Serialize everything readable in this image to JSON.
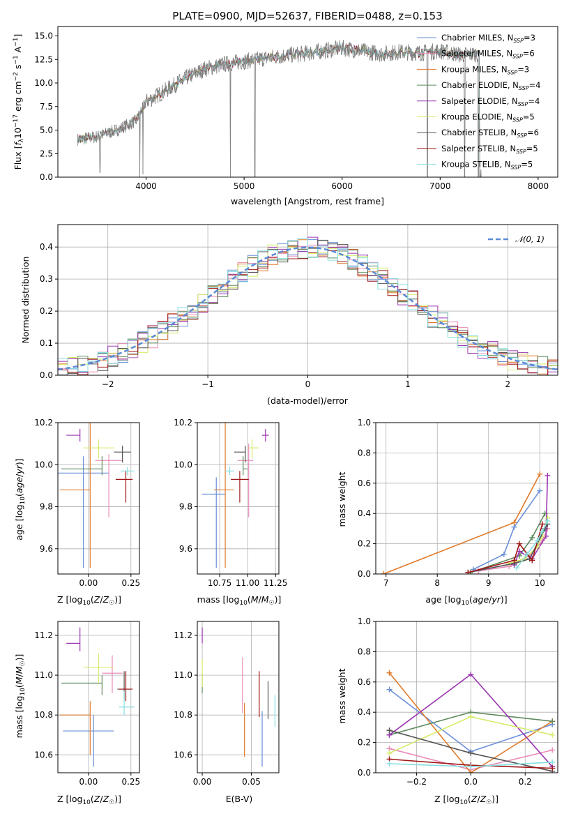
{
  "chart_data": [
    {
      "type": "line",
      "title": "PLATE=0900, MJD=52637, FIBERID=0488, z=0.153",
      "xlabel": "wavelength [Angstrom, rest frame]",
      "ylabel": "Flux [f",
      "xlim": [
        3100,
        8200
      ],
      "ylim": [
        0,
        16
      ],
      "xticks": [
        "4000",
        "5000",
        "6000",
        "7000",
        "8000"
      ],
      "yticks": [
        "0.0",
        "2.5",
        "5.0",
        "7.5",
        "10.0",
        "12.5",
        "15.0"
      ],
      "grid": false,
      "legend_position": "right",
      "series": [
        {
          "name": "Chabrier MILES",
          "nssp": "3",
          "color": "#6a8fd8"
        },
        {
          "name": "Salpeter MILES",
          "nssp": "6",
          "color": "#e98bb8"
        },
        {
          "name": "Kroupa MILES",
          "nssp": "3",
          "color": "#e07a2a"
        },
        {
          "name": "Chabrier ELODIE",
          "nssp": "4",
          "color": "#5e8a5e"
        },
        {
          "name": "Salpeter ELODIE",
          "nssp": "4",
          "color": "#9b35b0"
        },
        {
          "name": "Kroupa ELODIE",
          "nssp": "5",
          "color": "#d4ec68"
        },
        {
          "name": "Chabrier STELIB",
          "nssp": "6",
          "color": "#555555"
        },
        {
          "name": "Salpeter STELIB",
          "nssp": "5",
          "color": "#a01818"
        },
        {
          "name": "Kroupa STELIB",
          "nssp": "5",
          "color": "#86dede"
        }
      ],
      "data_color": "#808080",
      "spectrum_continuum": {
        "x": [
          3300,
          3500,
          3700,
          3900,
          4000,
          4200,
          4400,
          4600,
          4800,
          5000,
          5200,
          5400,
          5600,
          5800,
          6000,
          6200,
          6400,
          6600,
          6800,
          7000,
          7200,
          7400
        ],
        "y": [
          4.0,
          4.3,
          5.0,
          6.0,
          8.0,
          9.2,
          10.5,
          11.5,
          12.0,
          12.3,
          12.6,
          12.9,
          13.1,
          13.4,
          13.7,
          13.4,
          13.1,
          13.3,
          13.2,
          13.4,
          13.0,
          13.1
        ]
      },
      "absorption_dips": [
        {
          "x": 3530,
          "y": 0.5
        },
        {
          "x": 3935,
          "y": 0.0
        },
        {
          "x": 3968,
          "y": 0.3
        },
        {
          "x": 4860,
          "y": 0.0
        },
        {
          "x": 5110,
          "y": 0.0
        },
        {
          "x": 6870,
          "y": 0.0
        },
        {
          "x": 7250,
          "y": 0.0
        },
        {
          "x": 7390,
          "y": 0.0
        }
      ]
    },
    {
      "type": "histogram",
      "xlabel": "(data-model)/error",
      "ylabel": "Normed distribution",
      "xlim": [
        -2.5,
        2.5
      ],
      "ylim": [
        0,
        0.47
      ],
      "xticks": [
        "−2",
        "−1",
        "0",
        "1",
        "2"
      ],
      "yticks": [
        "0.0",
        "0.1",
        "0.2",
        "0.3",
        "0.4"
      ],
      "grid": true,
      "legend_label": "𝒩(0, 1)",
      "legend_position": "top-right",
      "gaussian_color": "#5b8ad6"
    },
    {
      "type": "scatter",
      "xlabel": "Z [log10(Z/Z☉)]",
      "ylabel": "age  [log10(age/yr)]",
      "xlim": [
        -0.18,
        0.3
      ],
      "ylim": [
        9.48,
        10.2
      ],
      "xticks": [
        "0.00",
        "0.25"
      ],
      "yticks": [
        "9.6",
        "9.8",
        "10.0",
        "10.2"
      ],
      "points": [
        {
          "x": -0.03,
          "xerr": [
            0.15,
            0.15
          ],
          "y": 9.96,
          "yerr": [
            0.45,
            0.08
          ]
        },
        {
          "x": 0.12,
          "xerr": [
            0.08,
            0.08
          ],
          "y": 10.02,
          "yerr": [
            0.27,
            0.03
          ]
        },
        {
          "x": 0.01,
          "xerr": [
            0.18,
            0.0
          ],
          "y": 9.88,
          "yerr": [
            0.37,
            0.32
          ]
        },
        {
          "x": 0.08,
          "xerr": [
            0.24,
            0.0
          ],
          "y": 9.98,
          "yerr": [
            0.03,
            0.06
          ]
        },
        {
          "x": -0.05,
          "xerr": [
            0.08,
            0.0
          ],
          "y": 10.14,
          "yerr": [
            0.03,
            0.03
          ]
        },
        {
          "x": 0.06,
          "xerr": [
            0.09,
            0.09
          ],
          "y": 10.08,
          "yerr": [
            0.05,
            0.04
          ]
        },
        {
          "x": 0.2,
          "xerr": [
            0.05,
            0.05
          ],
          "y": 10.06,
          "yerr": [
            0.05,
            0.03
          ]
        },
        {
          "x": 0.22,
          "xerr": [
            0.06,
            0.04
          ],
          "y": 9.93,
          "yerr": [
            0.11,
            0.04
          ]
        },
        {
          "x": 0.23,
          "xerr": [
            0.04,
            0.04
          ],
          "y": 9.97,
          "yerr": [
            0.02,
            0.02
          ]
        }
      ]
    },
    {
      "type": "scatter",
      "xlabel": "mass [log10(M/M☉)]",
      "xlim": [
        10.55,
        11.28
      ],
      "ylim": [
        9.48,
        10.2
      ],
      "xticks": [
        "10.75",
        "11.00",
        "11.25"
      ],
      "yticks": [
        "9.6",
        "9.8",
        "10.0",
        "10.2"
      ],
      "points": [
        {
          "x": 10.72,
          "xerr": [
            0.13,
            0.08
          ],
          "y": 9.86,
          "yerr": [
            0.35,
            0.08
          ]
        },
        {
          "x": 11.01,
          "xerr": [
            0.1,
            0.04
          ],
          "y": 10.02,
          "yerr": [
            0.27,
            0.08
          ]
        },
        {
          "x": 10.8,
          "xerr": [
            0.1,
            0.08
          ],
          "y": 9.88,
          "yerr": [
            0.37,
            0.32
          ]
        },
        {
          "x": 10.96,
          "xerr": [
            0.0,
            0.04
          ],
          "y": 9.98,
          "yerr": [
            0.03,
            0.06
          ]
        },
        {
          "x": 11.16,
          "xerr": [
            0.03,
            0.03
          ],
          "y": 10.14,
          "yerr": [
            0.03,
            0.03
          ]
        },
        {
          "x": 11.04,
          "xerr": [
            0.03,
            0.06
          ],
          "y": 10.08,
          "yerr": [
            0.05,
            0.04
          ]
        },
        {
          "x": 10.98,
          "xerr": [
            0.1,
            0.0
          ],
          "y": 10.06,
          "yerr": [
            0.05,
            0.03
          ]
        },
        {
          "x": 10.93,
          "xerr": [
            0.08,
            0.08
          ],
          "y": 9.93,
          "yerr": [
            0.11,
            0.04
          ]
        },
        {
          "x": 10.84,
          "xerr": [
            0.04,
            0.04
          ],
          "y": 9.97,
          "yerr": [
            0.02,
            0.02
          ]
        }
      ]
    },
    {
      "type": "line",
      "xlabel": "age  [log10(age/yr)]",
      "ylabel": "mass weight",
      "xlim": [
        6.8,
        10.35
      ],
      "ylim": [
        0,
        1.0
      ],
      "xticks": [
        "7",
        "8",
        "9",
        "10"
      ],
      "yticks": [
        "0.0",
        "0.2",
        "0.4",
        "0.6",
        "0.8",
        "1.0"
      ],
      "grid": true,
      "series": [
        {
          "x": [
            8.7,
            9.3,
            9.5,
            10.0
          ],
          "y": [
            0.03,
            0.13,
            0.31,
            0.55
          ]
        },
        {
          "x": [
            8.8,
            9.4,
            9.55,
            9.8,
            10.05,
            10.15
          ],
          "y": [
            0.02,
            0.05,
            0.08,
            0.12,
            0.22,
            0.3
          ]
        },
        {
          "x": [
            6.95,
            9.5,
            10.0
          ],
          "y": [
            0.0,
            0.34,
            0.66
          ]
        },
        {
          "x": [
            8.65,
            9.6,
            9.85,
            10.1
          ],
          "y": [
            0.01,
            0.12,
            0.24,
            0.4
          ]
        },
        {
          "x": [
            9.5,
            9.6,
            9.85,
            10.12,
            10.15
          ],
          "y": [
            0.06,
            0.15,
            0.1,
            0.25,
            0.65
          ]
        },
        {
          "x": [
            9.4,
            9.7,
            9.95,
            10.05,
            10.15
          ],
          "y": [
            0.07,
            0.1,
            0.18,
            0.25,
            0.37
          ]
        },
        {
          "x": [
            8.6,
            9.5,
            9.8,
            10.1,
            10.15
          ],
          "y": [
            0.01,
            0.07,
            0.1,
            0.3,
            0.33
          ]
        },
        {
          "x": [
            8.6,
            9.5,
            9.6,
            9.85,
            10.05
          ],
          "y": [
            0.01,
            0.09,
            0.2,
            0.09,
            0.33
          ]
        },
        {
          "x": [
            9.55,
            9.75,
            9.95,
            10.05,
            10.15
          ],
          "y": [
            0.04,
            0.13,
            0.22,
            0.28,
            0.35
          ]
        }
      ]
    },
    {
      "type": "scatter",
      "xlabel": "Z [log10(Z/Z☉)]",
      "ylabel": "mass [log10(M/M☉)]",
      "xlim": [
        -0.18,
        0.3
      ],
      "ylim": [
        10.51,
        11.27
      ],
      "xticks": [
        "0.00",
        "0.25"
      ],
      "yticks": [
        "10.6",
        "10.8",
        "11.0",
        "11.2"
      ],
      "points": [
        {
          "x": 0.03,
          "xerr": [
            0.18,
            0.12
          ],
          "y": 10.72,
          "yerr": [
            0.18,
            0.08
          ]
        },
        {
          "x": 0.14,
          "xerr": [
            0.06,
            0.06
          ],
          "y": 11.01,
          "yerr": [
            0.1,
            0.09
          ]
        },
        {
          "x": 0.01,
          "xerr": [
            0.18,
            0.0
          ],
          "y": 10.8,
          "yerr": [
            0.2,
            0.07
          ]
        },
        {
          "x": 0.08,
          "xerr": [
            0.24,
            0.0
          ],
          "y": 10.96,
          "yerr": [
            0.06,
            0.04
          ]
        },
        {
          "x": -0.05,
          "xerr": [
            0.08,
            0.0
          ],
          "y": 11.16,
          "yerr": [
            0.04,
            0.08
          ]
        },
        {
          "x": 0.06,
          "xerr": [
            0.09,
            0.09
          ],
          "y": 11.04,
          "yerr": [
            0.08,
            0.07
          ]
        },
        {
          "x": 0.21,
          "xerr": [
            0.04,
            0.04
          ],
          "y": 10.93,
          "yerr": [
            0.05,
            0.09
          ]
        },
        {
          "x": 0.22,
          "xerr": [
            0.04,
            0.04
          ],
          "y": 10.93,
          "yerr": [
            0.06,
            0.09
          ]
        },
        {
          "x": 0.21,
          "xerr": [
            0.03,
            0.06
          ],
          "y": 10.84,
          "yerr": [
            0.04,
            0.08
          ]
        }
      ]
    },
    {
      "type": "scatter",
      "xlabel": "E(B-V)",
      "xlim": [
        -0.005,
        0.078
      ],
      "ylim": [
        10.51,
        11.27
      ],
      "xticks": [
        "0.00",
        "0.05"
      ],
      "yticks": [
        "10.6",
        "10.8",
        "11.0",
        "11.2"
      ],
      "points": [
        {
          "x": 0.061,
          "y": 10.72,
          "yerr": [
            0.18,
            0.1
          ]
        },
        {
          "x": 0.041,
          "y": 11.0,
          "yerr": [
            0.19,
            0.09
          ]
        },
        {
          "x": 0.043,
          "y": 10.8,
          "yerr": [
            0.21,
            0.06
          ]
        },
        {
          "x": 0.0,
          "y": 10.96,
          "yerr": [
            0.05,
            0.05
          ]
        },
        {
          "x": 0.0,
          "y": 11.2,
          "yerr": [
            0.04,
            0.04
          ]
        },
        {
          "x": 0.0,
          "y": 11.04,
          "yerr": [
            0.1,
            0.04
          ]
        },
        {
          "x": 0.067,
          "y": 10.87,
          "yerr": [
            0.09,
            0.1
          ]
        },
        {
          "x": 0.058,
          "y": 10.88,
          "yerr": [
            0.09,
            0.14
          ]
        },
        {
          "x": 0.074,
          "y": 10.82,
          "yerr": [
            0.08,
            0.08
          ]
        }
      ]
    },
    {
      "type": "line",
      "xlabel": "Z [log10(Z/Z☉)]",
      "ylabel": "mass weight",
      "xlim": [
        -0.35,
        0.32
      ],
      "ylim": [
        0,
        1.0
      ],
      "xticks": [
        "−0.2",
        "0.0",
        "0.2"
      ],
      "yticks": [
        "0.0",
        "0.2",
        "0.4",
        "0.6",
        "0.8",
        "1.0"
      ],
      "grid": true,
      "series": [
        {
          "x": [
            -0.3,
            0.0,
            0.3
          ],
          "y": [
            0.55,
            0.14,
            0.32
          ]
        },
        {
          "x": [
            -0.3,
            0.0,
            0.3
          ],
          "y": [
            0.16,
            0.02,
            0.15
          ]
        },
        {
          "x": [
            -0.3,
            0.0,
            0.3
          ],
          "y": [
            0.66,
            0.0,
            0.34
          ]
        },
        {
          "x": [
            -0.3,
            0.0,
            0.3
          ],
          "y": [
            0.25,
            0.4,
            0.34
          ]
        },
        {
          "x": [
            -0.3,
            0.0,
            0.3
          ],
          "y": [
            0.25,
            0.65,
            0.04
          ]
        },
        {
          "x": [
            -0.3,
            0.0,
            0.3
          ],
          "y": [
            0.13,
            0.37,
            0.25
          ]
        },
        {
          "x": [
            -0.3,
            0.0,
            0.3
          ],
          "y": [
            0.28,
            0.13,
            0.01
          ]
        },
        {
          "x": [
            -0.3,
            0.0,
            0.3
          ],
          "y": [
            0.09,
            0.05,
            0.03
          ]
        },
        {
          "x": [
            -0.3,
            0.0,
            0.3
          ],
          "y": [
            0.06,
            0.04,
            0.07
          ]
        }
      ]
    }
  ]
}
